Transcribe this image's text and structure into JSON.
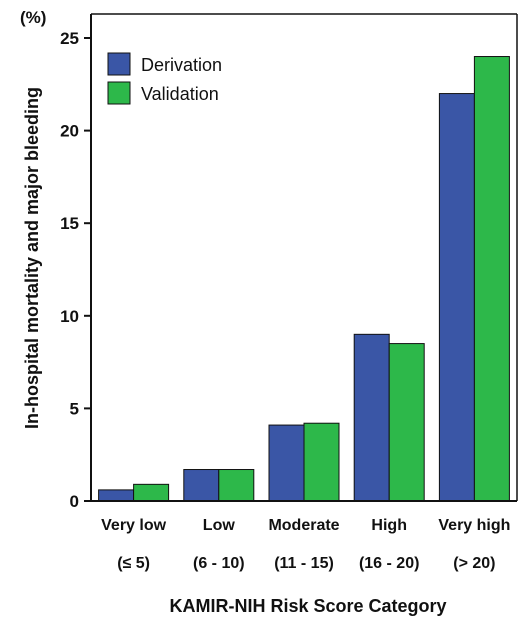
{
  "chart_data": {
    "type": "bar",
    "unit_label": "(%)",
    "xlabel": "KAMIR-NIH Risk Score Category",
    "ylabel": "In-hospital mortality and major bleeding",
    "categories": [
      "Very low",
      "Low",
      "Moderate",
      "High",
      "Very high"
    ],
    "category_ranges": [
      "(≤ 5)",
      "(6 - 10)",
      "(11 - 15)",
      "(16 - 20)",
      "(> 20)"
    ],
    "series": [
      {
        "name": "Derivation",
        "color": "#3a56a6",
        "values": [
          0.6,
          1.7,
          4.1,
          9.0,
          22.0
        ]
      },
      {
        "name": "Validation",
        "color": "#2db84a",
        "values": [
          0.9,
          1.7,
          4.2,
          8.5,
          24.0
        ]
      }
    ],
    "ylim": [
      0,
      25
    ],
    "yticks": [
      0,
      5,
      10,
      15,
      20,
      25
    ],
    "grid": false,
    "legend_position": "top-left"
  }
}
